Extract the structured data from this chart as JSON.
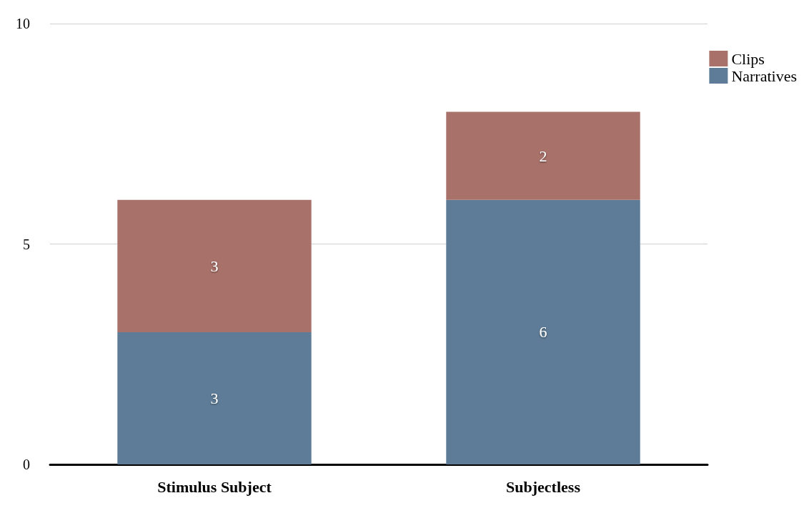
{
  "chart_data": {
    "type": "bar",
    "stacked": true,
    "categories": [
      "Stimulus Subject",
      "Subjectless"
    ],
    "series": [
      {
        "name": "Narratives",
        "color": "#5e7c97",
        "values": [
          3,
          6
        ]
      },
      {
        "name": "Clips",
        "color": "#a8716a",
        "values": [
          3,
          2
        ]
      }
    ],
    "ylim": [
      0,
      10
    ],
    "yticks": [
      0,
      5,
      10
    ],
    "grid": "y",
    "legend": "top right",
    "data_labels": true
  }
}
